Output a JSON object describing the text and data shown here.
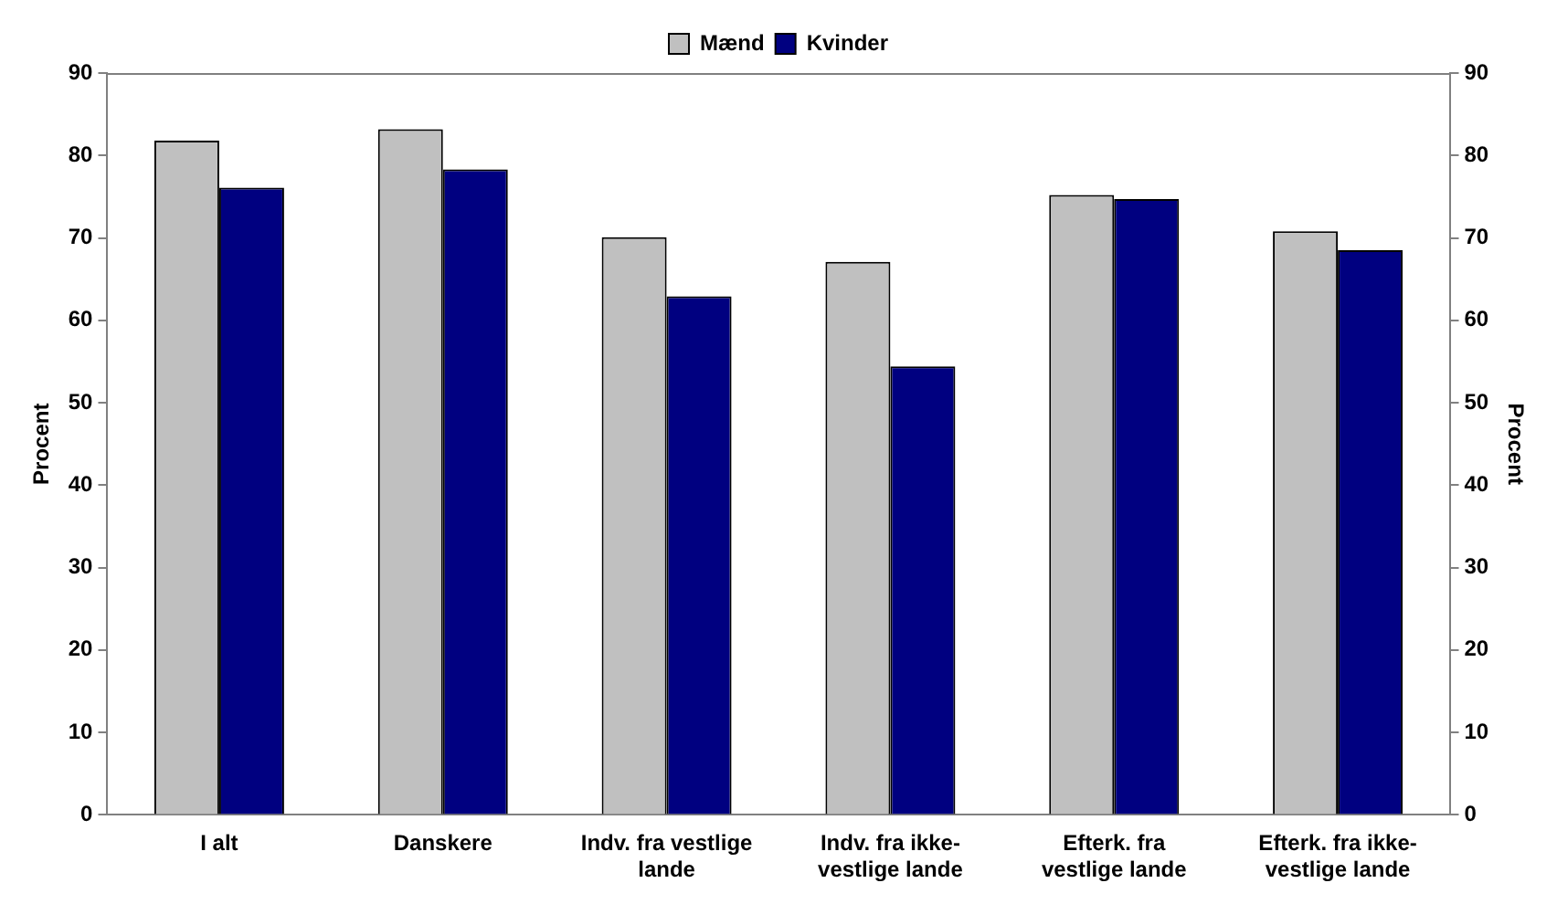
{
  "chart_data": {
    "type": "bar",
    "categories": [
      "I alt",
      "Danskere",
      "Indv. fra vestlige lande",
      "Indv. fra ikke-vestlige lande",
      "Efterk. fra vestlige lande",
      "Efterk. fra ikke-vestlige lande"
    ],
    "series": [
      {
        "name": "Mænd",
        "color": "#c0c0c0",
        "values": [
          81.8,
          83.2,
          70.1,
          67.1,
          75.2,
          70.8
        ]
      },
      {
        "name": "Kvinder",
        "color": "#000080",
        "values": [
          76.1,
          78.3,
          62.9,
          54.4,
          74.7,
          68.5
        ]
      }
    ],
    "ylabel": "Procent",
    "y2label": "Procent",
    "ylim": [
      0,
      90
    ],
    "yticks": [
      0,
      10,
      20,
      30,
      40,
      50,
      60,
      70,
      80,
      90
    ],
    "y2lim": [
      0,
      90
    ],
    "y2ticks": [
      0,
      10,
      20,
      30,
      40,
      50,
      60,
      70,
      80,
      90
    ],
    "grid": false,
    "legend": "top"
  }
}
